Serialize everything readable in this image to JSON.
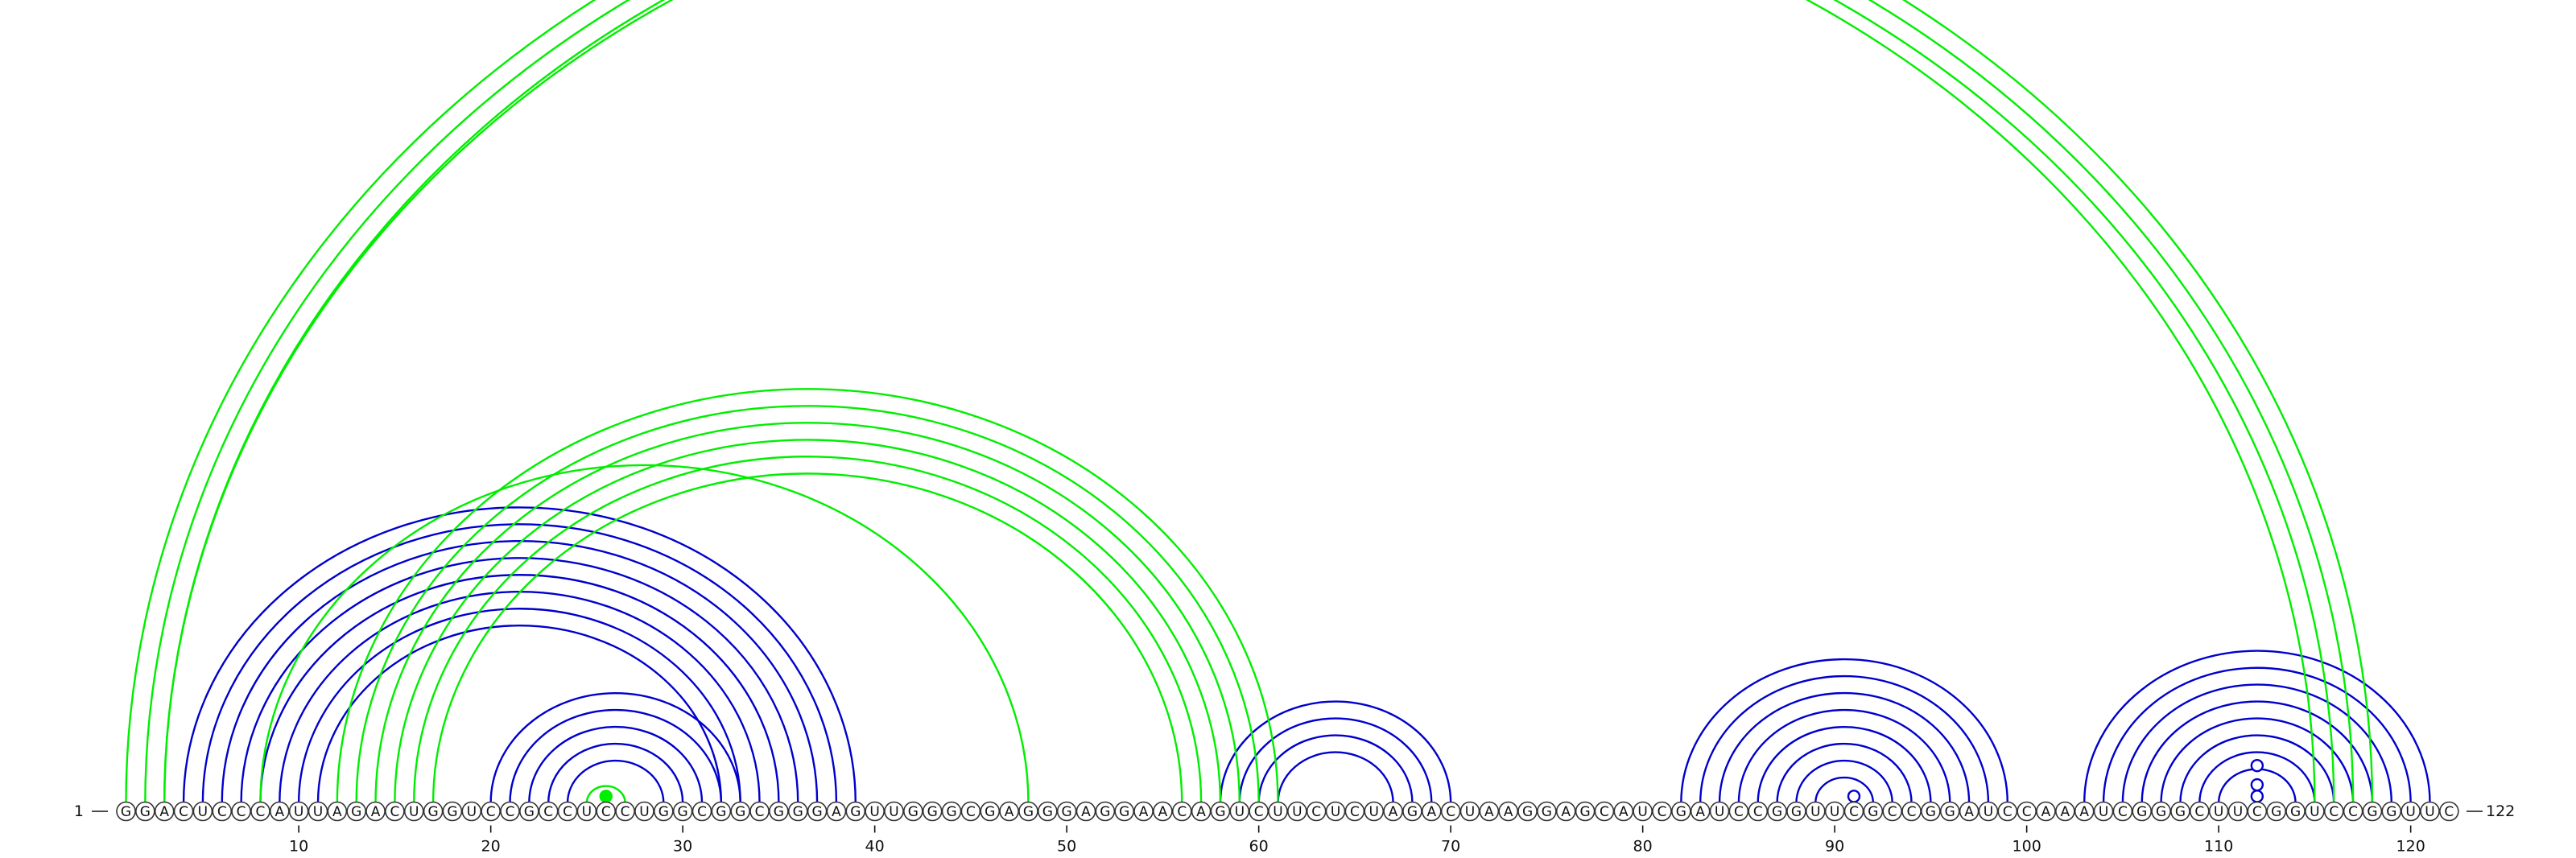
{
  "sequence": "GGACUCCCAUUAGACUGGUCCGCCUCCUGGCGGCGGGAGUUGGGCGAGGGAGGAACAGUCUUCUCUAGACUAAGGAGCAUCGAUCCGGUUCGCCGGAUCCAAAUCGGGCUUCGGUCCGGUUC",
  "start_label": "1",
  "end_label": "122",
  "axis_ticks": [
    10,
    20,
    30,
    40,
    50,
    60,
    70,
    80,
    90,
    100,
    110,
    120
  ],
  "colors": {
    "blue": "#0000cc",
    "green": "#00ee00",
    "nucleotide_stroke": "#333333"
  },
  "arcs": [
    {
      "i": 4,
      "j": 39,
      "color": "blue"
    },
    {
      "i": 5,
      "j": 38,
      "color": "blue"
    },
    {
      "i": 6,
      "j": 37,
      "color": "blue"
    },
    {
      "i": 7,
      "j": 36,
      "color": "blue"
    },
    {
      "i": 8,
      "j": 35,
      "color": "blue"
    },
    {
      "i": 9,
      "j": 34,
      "color": "blue"
    },
    {
      "i": 10,
      "j": 33,
      "color": "blue"
    },
    {
      "i": 11,
      "j": 32,
      "color": "blue"
    },
    {
      "i": 20,
      "j": 33,
      "color": "blue"
    },
    {
      "i": 21,
      "j": 32,
      "color": "blue"
    },
    {
      "i": 22,
      "j": 31,
      "color": "blue"
    },
    {
      "i": 23,
      "j": 30,
      "color": "blue"
    },
    {
      "i": 24,
      "j": 29,
      "color": "blue"
    },
    {
      "i": 58,
      "j": 70,
      "color": "blue"
    },
    {
      "i": 59,
      "j": 69,
      "color": "blue"
    },
    {
      "i": 60,
      "j": 68,
      "color": "blue"
    },
    {
      "i": 61,
      "j": 67,
      "color": "blue"
    },
    {
      "i": 82,
      "j": 99,
      "color": "blue"
    },
    {
      "i": 83,
      "j": 98,
      "color": "blue"
    },
    {
      "i": 84,
      "j": 97,
      "color": "blue"
    },
    {
      "i": 85,
      "j": 96,
      "color": "blue"
    },
    {
      "i": 86,
      "j": 95,
      "color": "blue"
    },
    {
      "i": 87,
      "j": 94,
      "color": "blue"
    },
    {
      "i": 88,
      "j": 93,
      "color": "blue"
    },
    {
      "i": 89,
      "j": 92,
      "color": "blue"
    },
    {
      "i": 103,
      "j": 121,
      "color": "blue"
    },
    {
      "i": 104,
      "j": 120,
      "color": "blue"
    },
    {
      "i": 105,
      "j": 119,
      "color": "blue"
    },
    {
      "i": 106,
      "j": 118,
      "color": "blue"
    },
    {
      "i": 107,
      "j": 117,
      "color": "blue"
    },
    {
      "i": 108,
      "j": 116,
      "color": "blue"
    },
    {
      "i": 109,
      "j": 115,
      "color": "blue"
    },
    {
      "i": 110,
      "j": 114,
      "color": "blue"
    },
    {
      "i": 1,
      "j": 118,
      "color": "green"
    },
    {
      "i": 2,
      "j": 117,
      "color": "green"
    },
    {
      "i": 3,
      "j": 116,
      "color": "green"
    },
    {
      "i": 3,
      "j": 115,
      "color": "green"
    },
    {
      "i": 12,
      "j": 61,
      "color": "green"
    },
    {
      "i": 13,
      "j": 60,
      "color": "green"
    },
    {
      "i": 14,
      "j": 59,
      "color": "green"
    },
    {
      "i": 15,
      "j": 58,
      "color": "green"
    },
    {
      "i": 16,
      "j": 57,
      "color": "green"
    },
    {
      "i": 17,
      "j": 56,
      "color": "green"
    },
    {
      "i": 8,
      "j": 48,
      "color": "green"
    },
    {
      "i": 25,
      "j": 27,
      "color": "green"
    }
  ],
  "markers": [
    {
      "pos": 26,
      "height": 0.3,
      "fill": "green"
    },
    {
      "pos": 91,
      "height": 0.3,
      "fill": "white"
    },
    {
      "pos": 112,
      "height": 0.3,
      "fill": "white"
    },
    {
      "pos": 112,
      "height": 0.9,
      "fill": "white"
    },
    {
      "pos": 112,
      "height": 1.9,
      "fill": "white"
    }
  ]
}
